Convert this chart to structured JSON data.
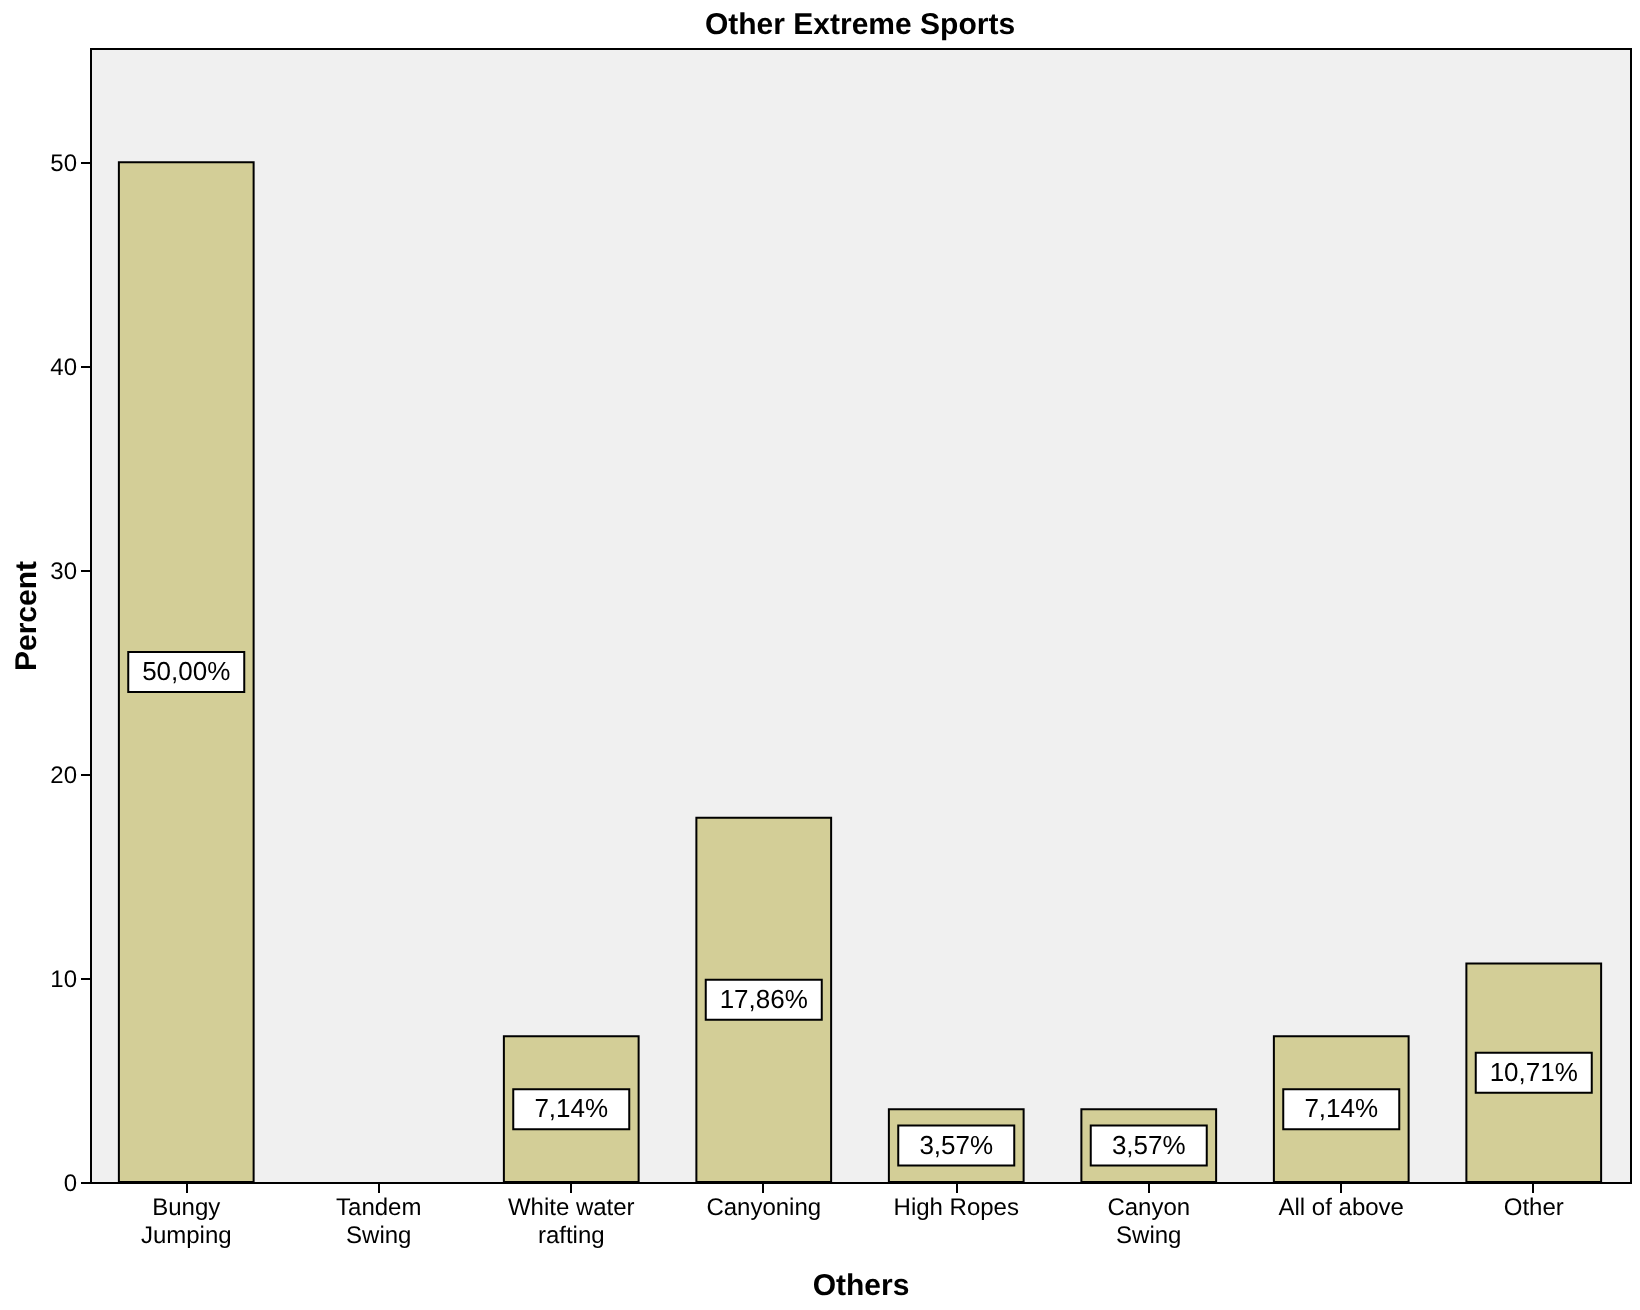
{
  "chart_data": {
    "type": "bar",
    "title": "Other Extreme Sports",
    "xlabel": "Others",
    "ylabel": "Percent",
    "categories": [
      "Bungy\nJumping",
      "Tandem\nSwing",
      "White water\nrafting",
      "Canyoning",
      "High Ropes",
      "Canyon\nSwing",
      "All of above",
      "Other"
    ],
    "values": [
      50.0,
      0,
      7.14,
      17.86,
      3.57,
      3.57,
      7.14,
      10.71
    ],
    "value_labels": [
      "50,00%",
      null,
      "7,14%",
      "17,86%",
      "3,57%",
      "3,57%",
      "7,14%",
      "10,71%"
    ],
    "color": "#d3ce97",
    "ylim": [
      0,
      55.6
    ],
    "yticks": [
      0,
      10,
      20,
      30,
      40,
      50
    ],
    "grid": false
  }
}
